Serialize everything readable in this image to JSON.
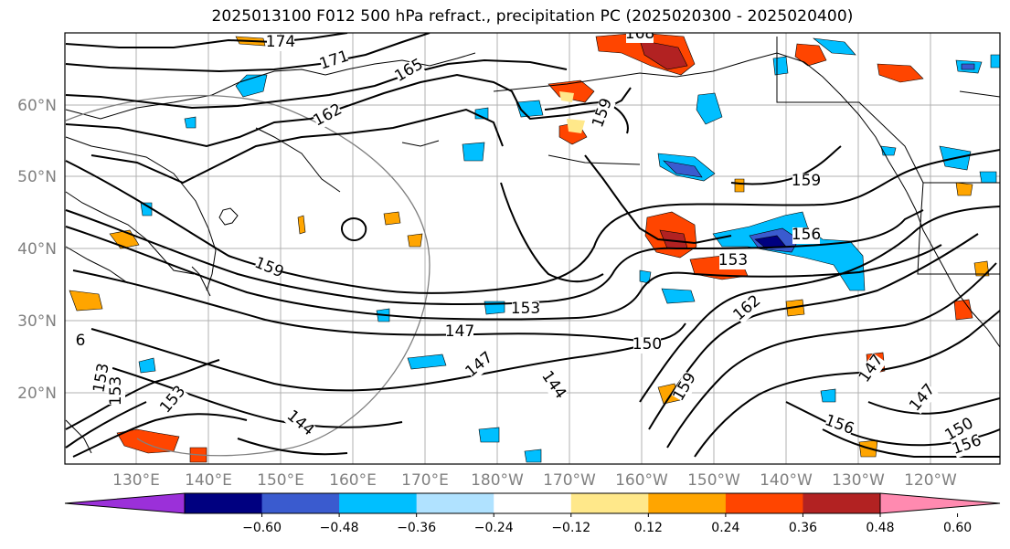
{
  "title": "2025013100 F012 500 hPa refract., precipitation PC (2025020300 - 2025020400)",
  "lat_labels": [
    "60°N",
    "50°N",
    "40°N",
    "30°N",
    "20°N"
  ],
  "lon_labels": [
    "130°E",
    "140°E",
    "150°E",
    "160°E",
    "170°E",
    "180°W",
    "170°W",
    "160°W",
    "150°W",
    "140°W",
    "130°W",
    "120°W"
  ],
  "contour_labels": [
    "174",
    "171",
    "165",
    "168",
    "162",
    "159",
    "159",
    "159",
    "156",
    "153",
    "153",
    "147",
    "150",
    "162",
    "147",
    "144",
    "156",
    "147",
    "156",
    "153",
    "147",
    "159",
    "150",
    "153",
    "153",
    "6",
    "144"
  ],
  "colorbar": {
    "colors": [
      "#9b30d9",
      "#000080",
      "#3a5bcf",
      "#00bfff",
      "#b0e2ff",
      "#ffffff",
      "#ffe88a",
      "#ffa500",
      "#ff4500",
      "#b22222",
      "#ff8ab0"
    ],
    "tick_labels": [
      "−0.60",
      "−0.48",
      "−0.36",
      "−0.24",
      "−0.12",
      "0.12",
      "0.24",
      "0.36",
      "0.48",
      "0.60"
    ]
  }
}
